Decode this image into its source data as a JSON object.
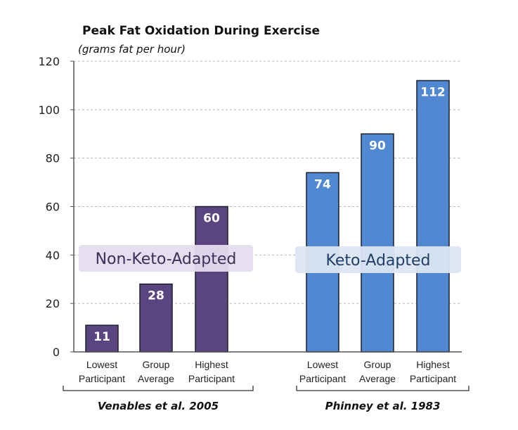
{
  "chart_data": {
    "type": "bar",
    "title": "Peak Fat Oxidation During Exercise",
    "subtitle": "(grams fat per hour)",
    "xlabel": "",
    "ylabel": "grams fat per hour",
    "ylim": [
      0,
      120
    ],
    "yticks": [
      0,
      20,
      40,
      60,
      80,
      100,
      120
    ],
    "grid": true,
    "legend": "none",
    "groups": [
      {
        "name": "Venables et al. 2005",
        "annotation": "Non-Keto-Adapted",
        "color": "#5B4580",
        "annotation_bg": "#E4DDEE",
        "annotation_color": "#3E2F5A",
        "categories": [
          [
            "Lowest",
            "Participant"
          ],
          [
            "Group",
            "Average"
          ],
          [
            "Highest",
            "Participant"
          ]
        ],
        "values": [
          11,
          28,
          60
        ]
      },
      {
        "name": "Phinney et al. 1983",
        "annotation": "Keto-Adapted",
        "color": "#5088D2",
        "annotation_bg": "#DCE6F2",
        "annotation_color": "#1F3D66",
        "categories": [
          [
            "Lowest",
            "Participant"
          ],
          [
            "Group",
            "Average"
          ],
          [
            "Highest",
            "Participant"
          ]
        ],
        "values": [
          74,
          90,
          112
        ]
      }
    ]
  }
}
